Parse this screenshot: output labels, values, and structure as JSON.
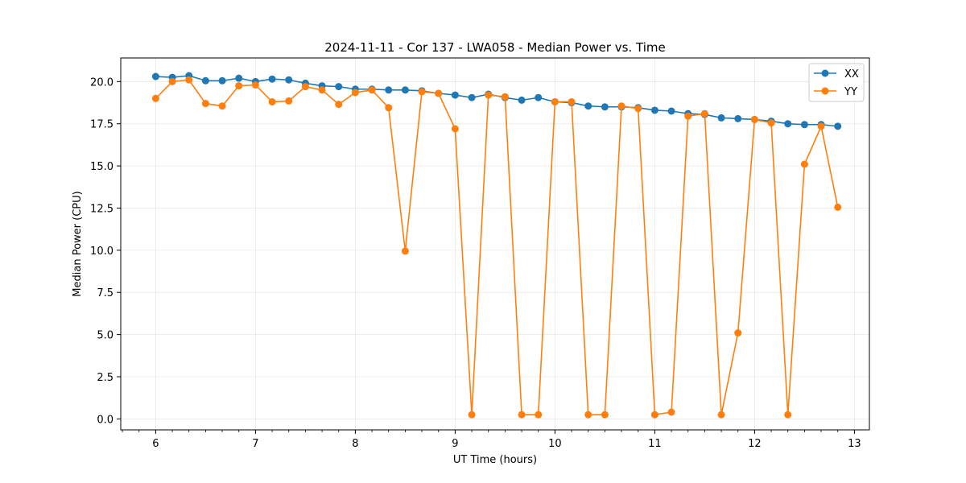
{
  "chart_data": {
    "type": "line",
    "title": "2024-11-11 - Cor 137 - LWA058 - Median Power vs. Time",
    "xlabel": "UT Time (hours)",
    "ylabel": "Median Power (CPU)",
    "xlim": [
      5.65,
      13.15
    ],
    "ylim": [
      -0.65,
      21.4
    ],
    "x_ticks": [
      6,
      7,
      8,
      9,
      10,
      11,
      12,
      13
    ],
    "x_tick_labels": [
      "6",
      "7",
      "8",
      "9",
      "10",
      "11",
      "12",
      "13"
    ],
    "y_ticks": [
      0,
      2.5,
      5,
      7.5,
      10,
      12.5,
      15,
      17.5,
      20
    ],
    "y_tick_labels": [
      "0.0",
      "2.5",
      "5.0",
      "7.5",
      "10.0",
      "12.5",
      "15.0",
      "17.5",
      "20.0"
    ],
    "grid": true,
    "legend_position": "top-right",
    "x": [
      6.0,
      6.1667,
      6.3333,
      6.5,
      6.6667,
      6.8333,
      7.0,
      7.1667,
      7.3333,
      7.5,
      7.6667,
      7.8333,
      8.0,
      8.1667,
      8.3333,
      8.5,
      8.6667,
      8.8333,
      9.0,
      9.1667,
      9.3333,
      9.5,
      9.6667,
      9.8333,
      10.0,
      10.1667,
      10.3333,
      10.5,
      10.6667,
      10.8333,
      11.0,
      11.1667,
      11.3333,
      11.5,
      11.6667,
      11.8333,
      12.0,
      12.1667,
      12.3333,
      12.5,
      12.6667,
      12.8333
    ],
    "series": [
      {
        "name": "XX",
        "color": "#1f77b4",
        "values": [
          20.3,
          20.25,
          20.35,
          20.05,
          20.05,
          20.2,
          20.0,
          20.15,
          20.1,
          19.9,
          19.75,
          19.7,
          19.55,
          19.55,
          19.5,
          19.5,
          19.45,
          19.3,
          19.2,
          19.05,
          19.25,
          19.05,
          18.9,
          19.05,
          18.8,
          18.75,
          18.55,
          18.5,
          18.5,
          18.45,
          18.3,
          18.25,
          18.1,
          18.05,
          17.85,
          17.8,
          17.75,
          17.65,
          17.5,
          17.45,
          17.45,
          17.35
        ]
      },
      {
        "name": "YY",
        "color": "#ff7f0e",
        "values": [
          19.0,
          20.0,
          20.1,
          18.7,
          18.55,
          19.75,
          19.8,
          18.8,
          18.85,
          19.7,
          19.5,
          18.65,
          19.35,
          19.5,
          18.45,
          9.95,
          19.4,
          19.3,
          17.2,
          0.25,
          19.2,
          19.1,
          0.25,
          0.25,
          18.8,
          18.8,
          0.25,
          0.25,
          18.55,
          18.4,
          0.25,
          0.4,
          17.95,
          18.1,
          0.25,
          5.1,
          17.75,
          17.55,
          0.25,
          15.1,
          17.35,
          12.55
        ]
      }
    ]
  }
}
